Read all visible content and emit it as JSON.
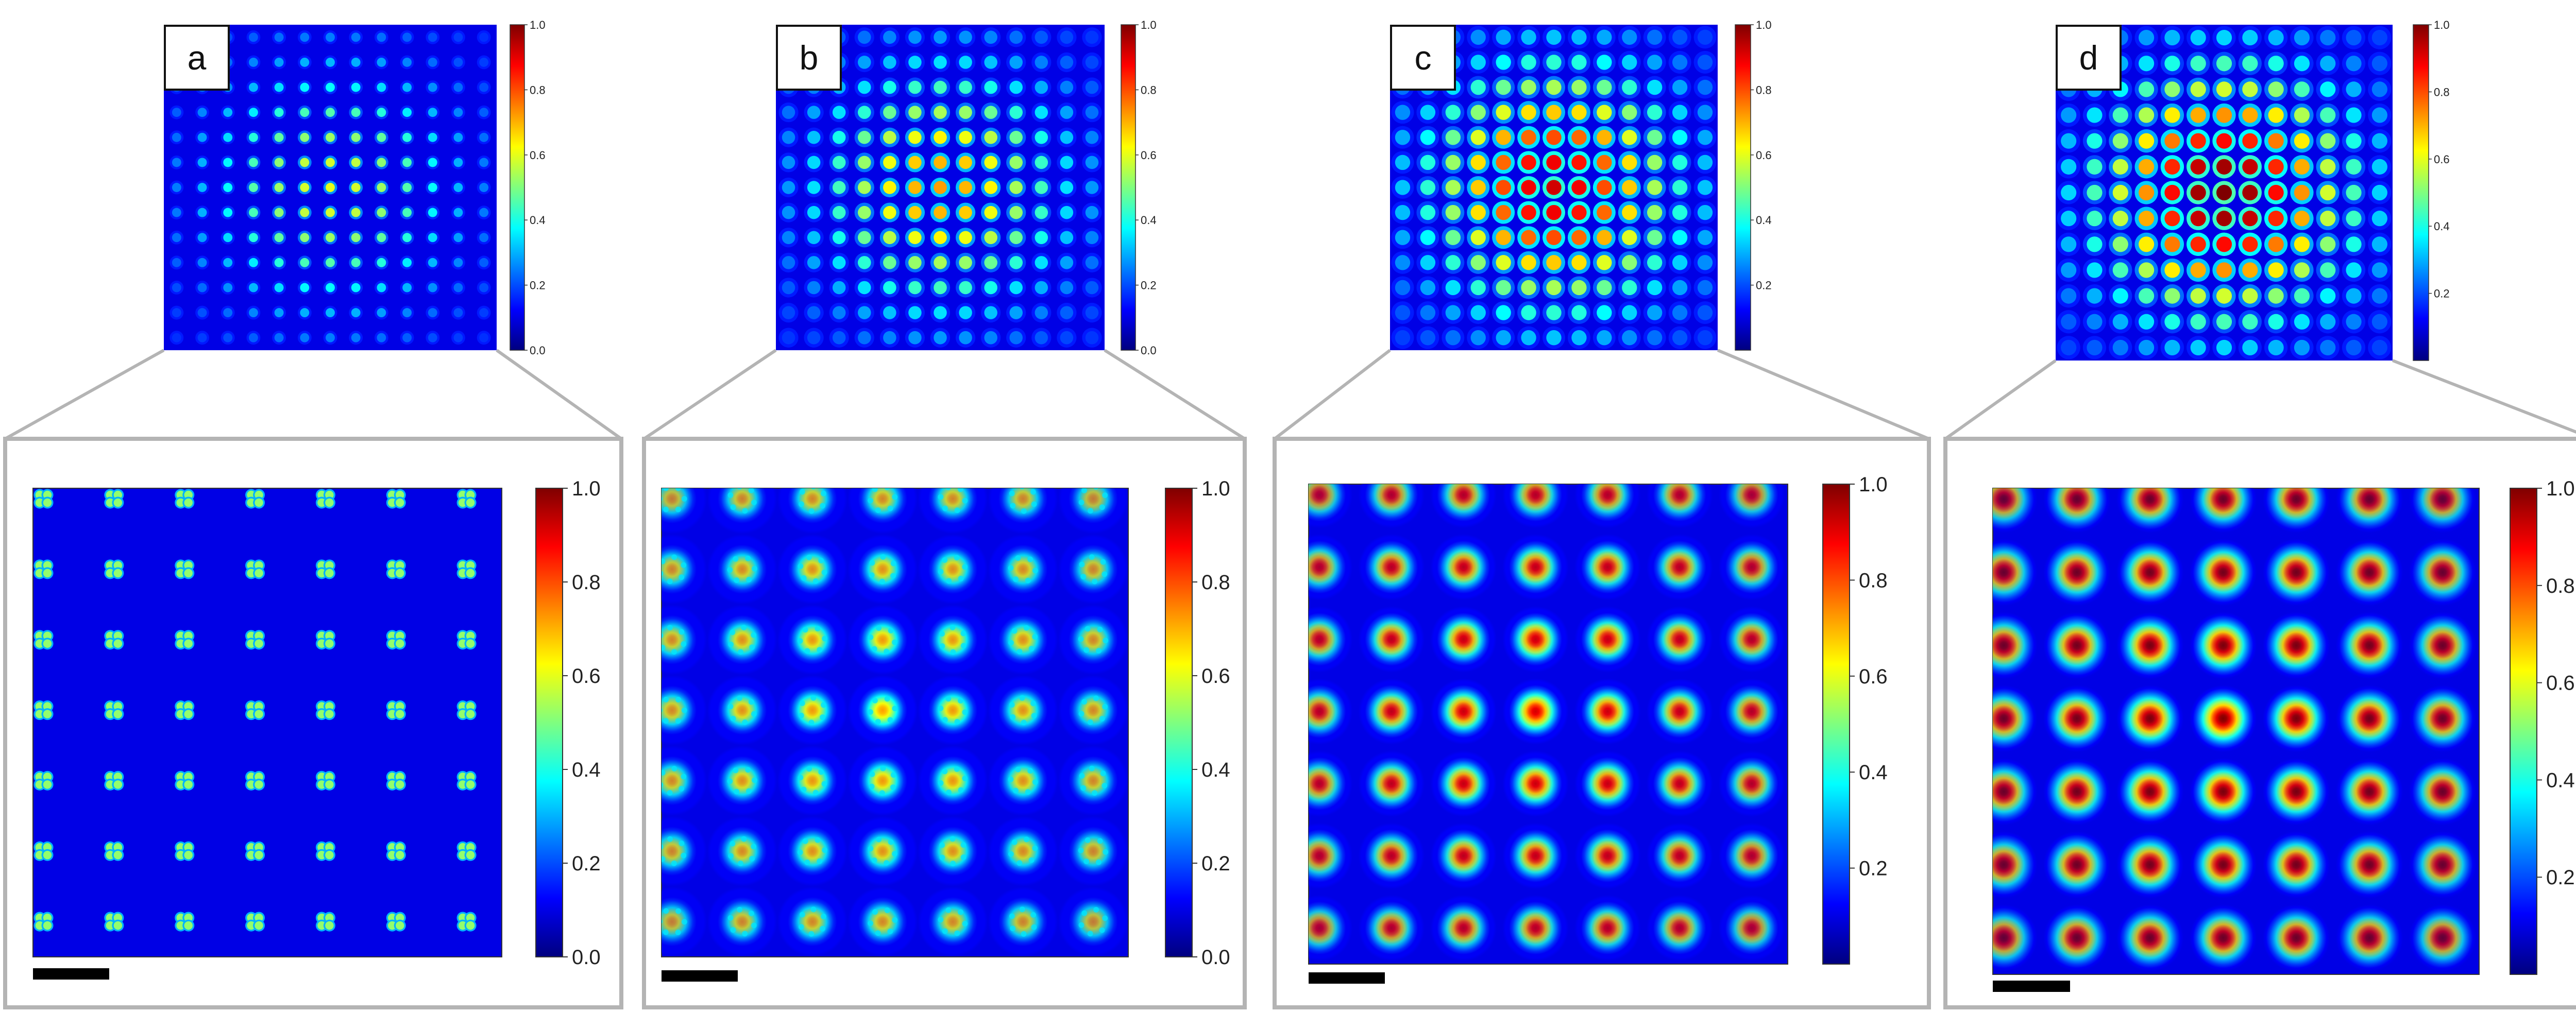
{
  "colormap": {
    "name": "jet",
    "stops": [
      "#00007f",
      "#0000ff",
      "#007fff",
      "#00ffff",
      "#7fff7f",
      "#ffff00",
      "#ff7f00",
      "#ff0000",
      "#7f0000"
    ]
  },
  "colors": {
    "zoom_outline": "#b4b4b4",
    "scale_bar": "#000000",
    "label_box_border": "#111111"
  },
  "panels": [
    {
      "label": "a",
      "overview_ticks": [
        "1.0",
        "0.8",
        "0.6",
        "0.4",
        "0.2",
        "0.0"
      ],
      "zoom_ticks": [
        "1.0",
        "0.8",
        "0.6",
        "0.4",
        "0.2",
        "0.0"
      ],
      "spot_style": "quatrefoil",
      "peak_intensity": 0.6
    },
    {
      "label": "b",
      "overview_ticks": [
        "1.0",
        "0.8",
        "0.6",
        "0.4",
        "0.2",
        "0.0"
      ],
      "zoom_ticks": [
        "1.0",
        "0.8",
        "0.6",
        "0.4",
        "0.2",
        "0.0"
      ],
      "spot_style": "speckled",
      "peak_intensity": 0.72
    },
    {
      "label": "c",
      "overview_ticks": [
        "1.0",
        "0.8",
        "0.6",
        "0.4",
        "0.2"
      ],
      "zoom_ticks": [
        "1.0",
        "0.8",
        "0.6",
        "0.4",
        "0.2"
      ],
      "spot_style": "gaussian",
      "peak_intensity": 0.92
    },
    {
      "label": "d",
      "overview_ticks": [
        "1.0",
        "0.8",
        "0.6",
        "0.4",
        "0.2"
      ],
      "zoom_ticks": [
        "1.0",
        "0.8",
        "0.6",
        "0.4",
        "0.2"
      ],
      "spot_style": "smooth",
      "peak_intensity": 1.0
    }
  ]
}
